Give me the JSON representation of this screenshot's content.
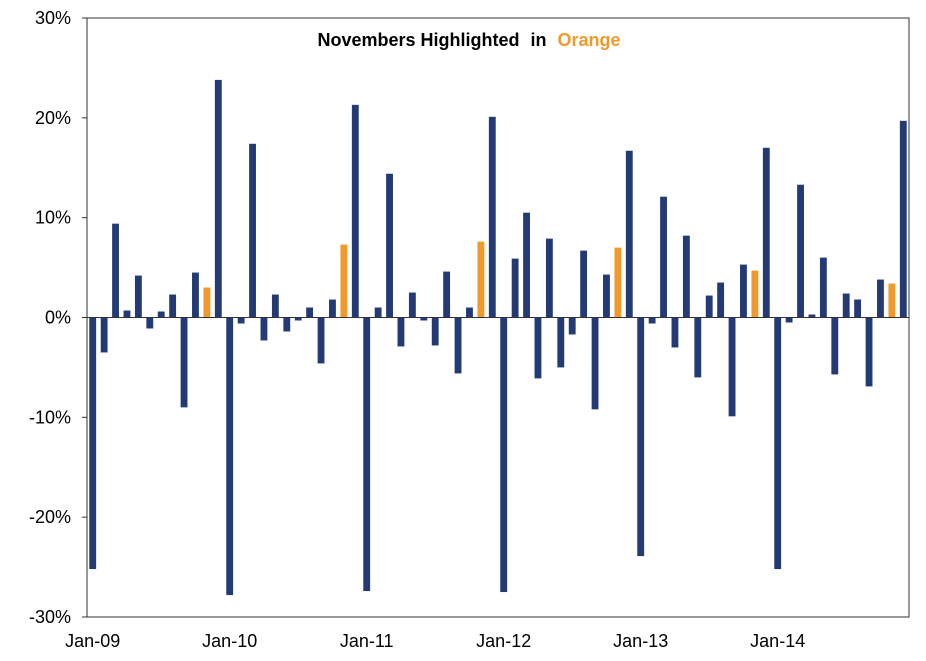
{
  "chart_data": {
    "type": "bar",
    "title": "Novembers Highlighted",
    "title_connector": "in",
    "title_highlight": "Orange",
    "xlabel": "",
    "ylabel": "",
    "ylim": [
      -30,
      30
    ],
    "ytick_values": [
      -30,
      -20,
      -10,
      0,
      10,
      20,
      30
    ],
    "ytick_labels": [
      "-30%",
      "-20%",
      "-10%",
      "0%",
      "10%",
      "20%",
      "30%"
    ],
    "grid": false,
    "colors": {
      "default": "#233a74",
      "highlight": "#f19a2b",
      "title_highlight": "#f19a2b"
    },
    "x_start": "Jan-09",
    "xtick_labels": [
      {
        "label": "Jan-09",
        "index": 0
      },
      {
        "label": "Jan-10",
        "index": 12
      },
      {
        "label": "Jan-11",
        "index": 24
      },
      {
        "label": "Jan-12",
        "index": 36
      },
      {
        "label": "Jan-13",
        "index": 48
      },
      {
        "label": "Jan-14",
        "index": 60
      }
    ],
    "highlight_month": "Nov",
    "values": [
      -25.2,
      -3.5,
      9.4,
      0.7,
      4.2,
      -1.1,
      0.6,
      2.3,
      -9.0,
      4.5,
      3.0,
      23.8,
      -27.8,
      -0.6,
      17.4,
      -2.3,
      2.3,
      -1.4,
      -0.3,
      1.0,
      -4.6,
      1.8,
      7.3,
      21.3,
      -27.4,
      1.0,
      14.4,
      -2.9,
      2.5,
      -0.3,
      -2.8,
      4.6,
      -5.6,
      1.0,
      7.6,
      20.1,
      -27.5,
      5.9,
      10.5,
      -6.1,
      7.9,
      -5.0,
      -1.7,
      6.7,
      -9.2,
      4.3,
      7.0,
      16.7,
      -23.9,
      -0.6,
      12.1,
      -3.0,
      8.2,
      -6.0,
      2.2,
      3.5,
      -9.9,
      5.3,
      4.7,
      17.0,
      -25.2,
      -0.5,
      13.3,
      0.3,
      6.0,
      -5.7,
      2.4,
      1.8,
      -6.9,
      3.8,
      3.4,
      19.7
    ]
  }
}
